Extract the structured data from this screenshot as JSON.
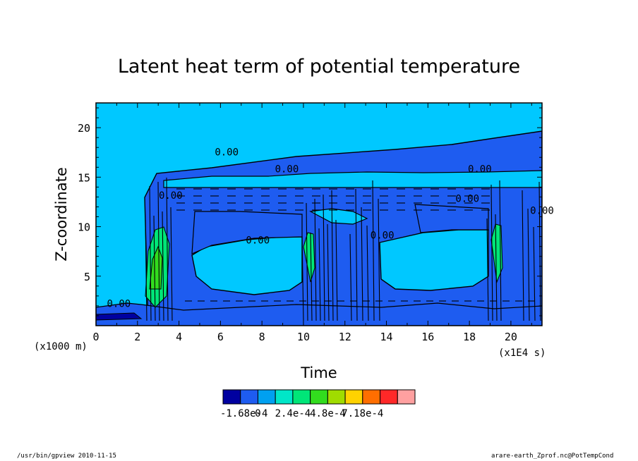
{
  "chart_data": {
    "type": "heatmap",
    "title": "Latent heat term of potential temperature",
    "xlabel": "Time",
    "ylabel": "Z-coordinate",
    "x_unit_label": "(x1E4 s)",
    "y_unit_label": "(x1000 m)",
    "xlim": [
      0,
      21.5
    ],
    "ylim": [
      0,
      22.5
    ],
    "x_ticks": [
      "0",
      "2",
      "4",
      "6",
      "8",
      "10",
      "12",
      "14",
      "16",
      "18",
      "20"
    ],
    "x_tick_values": [
      0,
      2,
      4,
      6,
      8,
      10,
      12,
      14,
      16,
      18,
      20
    ],
    "y_ticks": [
      "5",
      "10",
      "15",
      "20"
    ],
    "y_tick_values": [
      5,
      10,
      15,
      20
    ],
    "contour_labels": [
      {
        "text": "0.00",
        "x": 6.3,
        "y": 17.2
      },
      {
        "text": "0.00",
        "x": 9.2,
        "y": 15.5
      },
      {
        "text": "0.00",
        "x": 18.5,
        "y": 15.5
      },
      {
        "text": "0.00",
        "x": 17.9,
        "y": 12.5
      },
      {
        "text": "0.00",
        "x": 7.8,
        "y": 8.3
      },
      {
        "text": "0.00",
        "x": 1.1,
        "y": 1.9
      },
      {
        "text": "0.00",
        "x": 3.6,
        "y": 12.8
      },
      {
        "text": "0.00",
        "x": 13.8,
        "y": 8.8
      },
      {
        "text": "0.00",
        "x": 21.5,
        "y": 11.3
      }
    ],
    "colorbar": {
      "colors": [
        "#0000a0",
        "#1e5cf0",
        "#00a0f0",
        "#00e6c8",
        "#00e678",
        "#32dc1e",
        "#a0dc00",
        "#ffd200",
        "#ff6e00",
        "#ff2828",
        "#ffa0a0"
      ],
      "labels": [
        "-1.68e-4",
        "0",
        "2.4e-4",
        "4.8e-4",
        "7.18e-4"
      ]
    },
    "colors": {
      "background_level": "#00c8ff",
      "negative_level": "#1e5cf0",
      "strong_negative_level": "#0000a0",
      "positive_level": "#00e678",
      "strong_positive_level": "#32dc1e"
    }
  },
  "footer": {
    "left": "/usr/bin/gpview  2010-11-15",
    "right": "arare-earth_Zprof.nc@PotTempCond"
  }
}
